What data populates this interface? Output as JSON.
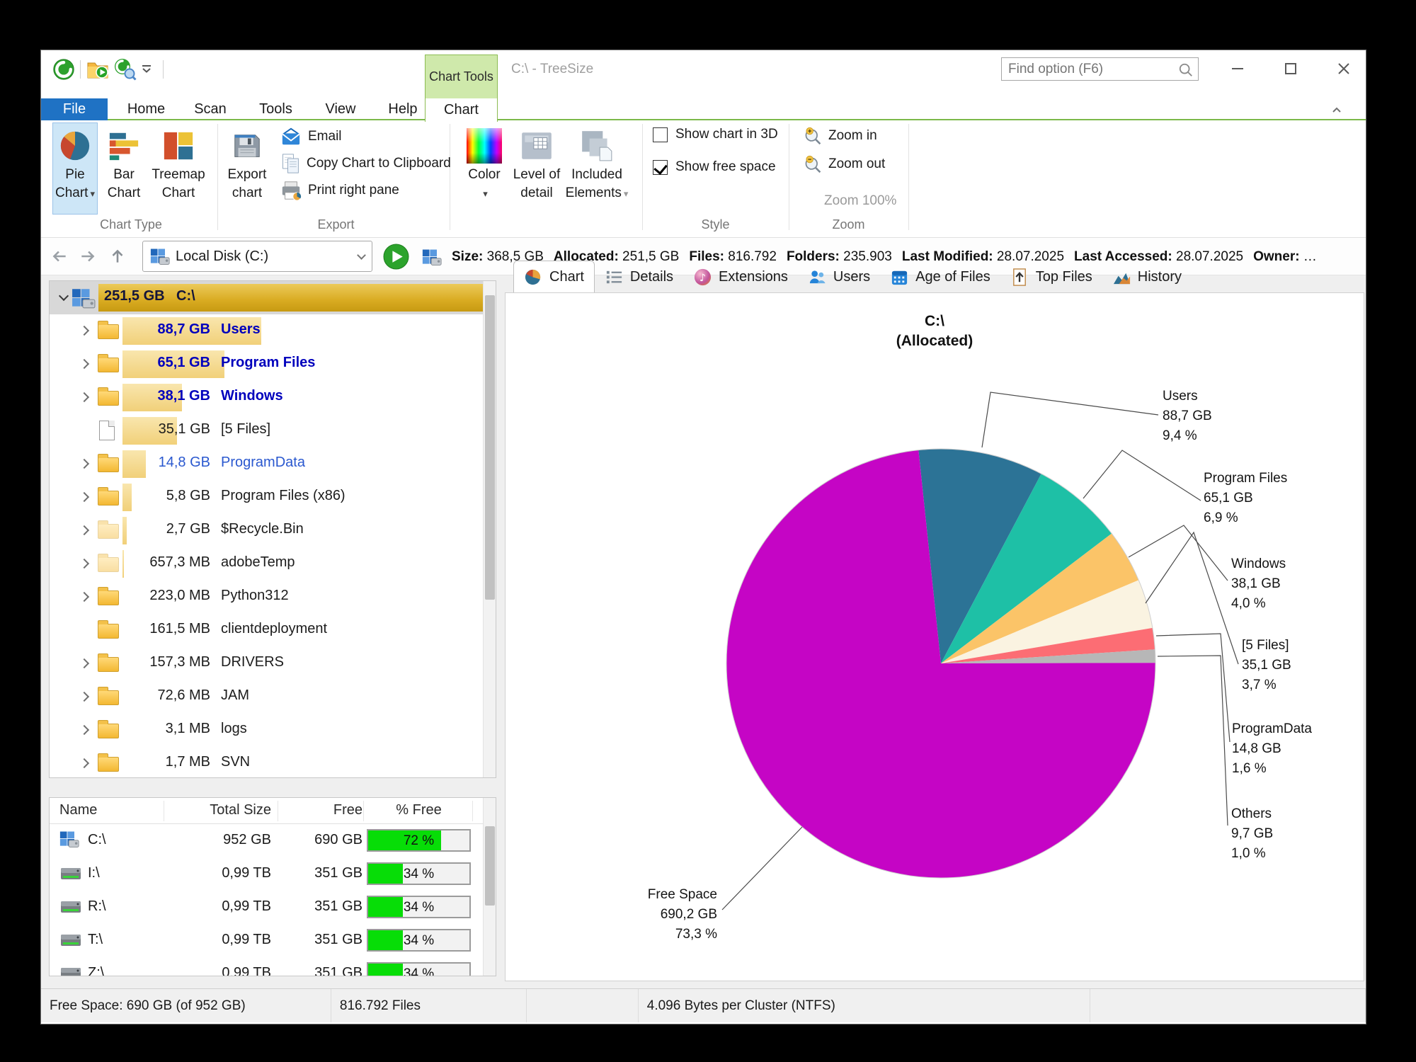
{
  "window": {
    "title": "C:\\ - TreeSize",
    "contextual_tab": "Chart Tools",
    "find_placeholder": "Find option (F6)"
  },
  "colors": {
    "accent_green": "#7cb94a",
    "file_tab_blue": "#1f72c4",
    "free_bar_green": "#07dd07",
    "size_bar_gold": "#d9ab21",
    "selection_blue": "#cde6f7"
  },
  "ribbon": {
    "tabs": [
      {
        "label": "File"
      },
      {
        "label": "Home"
      },
      {
        "label": "Scan"
      },
      {
        "label": "Tools"
      },
      {
        "label": "View"
      },
      {
        "label": "Help"
      },
      {
        "label": "Chart"
      }
    ],
    "active_tab": "Chart",
    "chart_type": {
      "caption": "Chart Type",
      "pie": "Pie Chart",
      "bar": "Bar Chart",
      "treemap": "Treemap Chart"
    },
    "export": {
      "caption": "Export",
      "export_chart": "Export chart",
      "email": "Email",
      "copy": "Copy Chart to Clipboard",
      "print": "Print right pane"
    },
    "display": {
      "color": "Color",
      "level": "Level of detail",
      "included": "Included Elements"
    },
    "style": {
      "caption": "Style",
      "chart3d": "Show chart in 3D",
      "chart3d_checked": false,
      "free_space": "Show free space",
      "free_space_checked": true
    },
    "zoom": {
      "caption": "Zoom",
      "zoom_in": "Zoom in",
      "zoom_out": "Zoom out",
      "zoom_100": "Zoom 100%"
    }
  },
  "addressbar": {
    "path": "Local Disk (C:)",
    "stats": [
      {
        "label": "Size:",
        "value": "368,5 GB"
      },
      {
        "label": "Allocated:",
        "value": "251,5 GB"
      },
      {
        "label": "Files:",
        "value": "816.792"
      },
      {
        "label": "Folders:",
        "value": "235.903"
      },
      {
        "label": "Last Modified:",
        "value": "28.07.2025"
      },
      {
        "label": "Last Accessed:",
        "value": "28.07.2025"
      },
      {
        "label": "Owner:",
        "value": "…"
      }
    ]
  },
  "tree": {
    "rows": [
      {
        "size": "251,5 GB",
        "name": "C:\\",
        "icon": "disk",
        "chev": true,
        "expanded": true,
        "root": true,
        "gb": 251.5,
        "style": "root"
      },
      {
        "size": "88,7 GB",
        "name": "Users",
        "icon": "folder",
        "chev": true,
        "gb": 88.7,
        "style": "boldblue"
      },
      {
        "size": "65,1 GB",
        "name": "Program Files",
        "icon": "folder",
        "chev": true,
        "gb": 65.1,
        "style": "boldblue"
      },
      {
        "size": "38,1 GB",
        "name": "Windows",
        "icon": "folder",
        "chev": true,
        "gb": 38.1,
        "style": "boldblue"
      },
      {
        "size": "35,1 GB",
        "name": "[5 Files]",
        "icon": "file",
        "chev": false,
        "gb": 35.1,
        "style": "plain"
      },
      {
        "size": "14,8 GB",
        "name": "ProgramData",
        "icon": "folder",
        "chev": true,
        "gb": 14.8,
        "style": "blue"
      },
      {
        "size": "5,8 GB",
        "name": "Program Files (x86)",
        "icon": "folder",
        "chev": true,
        "gb": 5.8,
        "style": "plain"
      },
      {
        "size": "2,7 GB",
        "name": "$Recycle.Bin",
        "icon": "folder-faded",
        "chev": true,
        "gb": 2.7,
        "style": "plain"
      },
      {
        "size": "657,3 MB",
        "name": "adobeTemp",
        "icon": "folder-faded",
        "chev": true,
        "gb": 0.64,
        "style": "plain"
      },
      {
        "size": "223,0 MB",
        "name": "Python312",
        "icon": "folder",
        "chev": true,
        "gb": 0.22,
        "style": "plain"
      },
      {
        "size": "161,5 MB",
        "name": "clientdeployment",
        "icon": "folder",
        "chev": false,
        "gb": 0.16,
        "style": "plain"
      },
      {
        "size": "157,3 MB",
        "name": "DRIVERS",
        "icon": "folder",
        "chev": true,
        "gb": 0.15,
        "style": "plain"
      },
      {
        "size": "72,6 MB",
        "name": "JAM",
        "icon": "folder",
        "chev": true,
        "gb": 0.07,
        "style": "plain"
      },
      {
        "size": "3,1 MB",
        "name": "logs",
        "icon": "folder",
        "chev": true,
        "gb": 0.003,
        "style": "plain"
      },
      {
        "size": "1,7 MB",
        "name": "SVN",
        "icon": "folder",
        "chev": true,
        "gb": 0.0017,
        "style": "plain"
      }
    ]
  },
  "drives": {
    "columns": [
      "Name",
      "Total Size",
      "Free",
      "% Free"
    ],
    "rows": [
      {
        "name": "C:\\",
        "icon": "disk",
        "total": "952 GB",
        "free": "690 GB",
        "pct": 72,
        "pct_label": "72 %"
      },
      {
        "name": "I:\\",
        "icon": "drive",
        "total": "0,99 TB",
        "free": "351 GB",
        "pct": 34,
        "pct_label": "34 %"
      },
      {
        "name": "R:\\",
        "icon": "drive",
        "total": "0,99 TB",
        "free": "351 GB",
        "pct": 34,
        "pct_label": "34 %"
      },
      {
        "name": "T:\\",
        "icon": "drive",
        "total": "0,99 TB",
        "free": "351 GB",
        "pct": 34,
        "pct_label": "34 %"
      },
      {
        "name": "Z:\\",
        "icon": "drive",
        "total": "0,99 TB",
        "free": "351 GB",
        "pct": 34,
        "pct_label": "34 %"
      }
    ]
  },
  "view_tabs": [
    {
      "label": "Chart",
      "icon": "tab-pie",
      "active": true
    },
    {
      "label": "Details",
      "icon": "tab-list",
      "active": false
    },
    {
      "label": "Extensions",
      "icon": "tab-ext",
      "active": false
    },
    {
      "label": "Users",
      "icon": "tab-users",
      "active": false
    },
    {
      "label": "Age of Files",
      "icon": "tab-cal",
      "active": false
    },
    {
      "label": "Top Files",
      "icon": "tab-top",
      "active": false
    },
    {
      "label": "History",
      "icon": "tab-hist",
      "active": false
    }
  ],
  "chart_data": {
    "type": "pie",
    "title": "C:\\",
    "subtitle": "(Allocated)",
    "unit": "GB",
    "start_angle_deg": -6,
    "slices": [
      {
        "label": "Users",
        "size": "88,7 GB",
        "pct": 9.4,
        "pct_label": "9,4 %",
        "color": "#2c7396"
      },
      {
        "label": "Program Files",
        "size": "65,1 GB",
        "pct": 6.9,
        "pct_label": "6,9 %",
        "color": "#1ec0a6"
      },
      {
        "label": "Windows",
        "size": "38,1 GB",
        "pct": 4.0,
        "pct_label": "4,0 %",
        "color": "#fbc468"
      },
      {
        "label": "[5 Files]",
        "size": "35,1 GB",
        "pct": 3.7,
        "pct_label": "3,7 %",
        "color": "#faf3e1"
      },
      {
        "label": "ProgramData",
        "size": "14,8 GB",
        "pct": 1.6,
        "pct_label": "1,6 %",
        "color": "#fc6d74"
      },
      {
        "label": "Others",
        "size": "9,7 GB",
        "pct": 1.0,
        "pct_label": "1,0 %",
        "color": "#b7b7b7"
      },
      {
        "label": "Free Space",
        "size": "690,2 GB",
        "pct": 73.3,
        "pct_label": "73,3 %",
        "color": "#c505c5"
      }
    ]
  },
  "statusbar": {
    "segments": [
      "Free Space: 690 GB  (of 952 GB)",
      "816.792 Files",
      "",
      "4.096 Bytes per Cluster (NTFS)",
      ""
    ]
  }
}
